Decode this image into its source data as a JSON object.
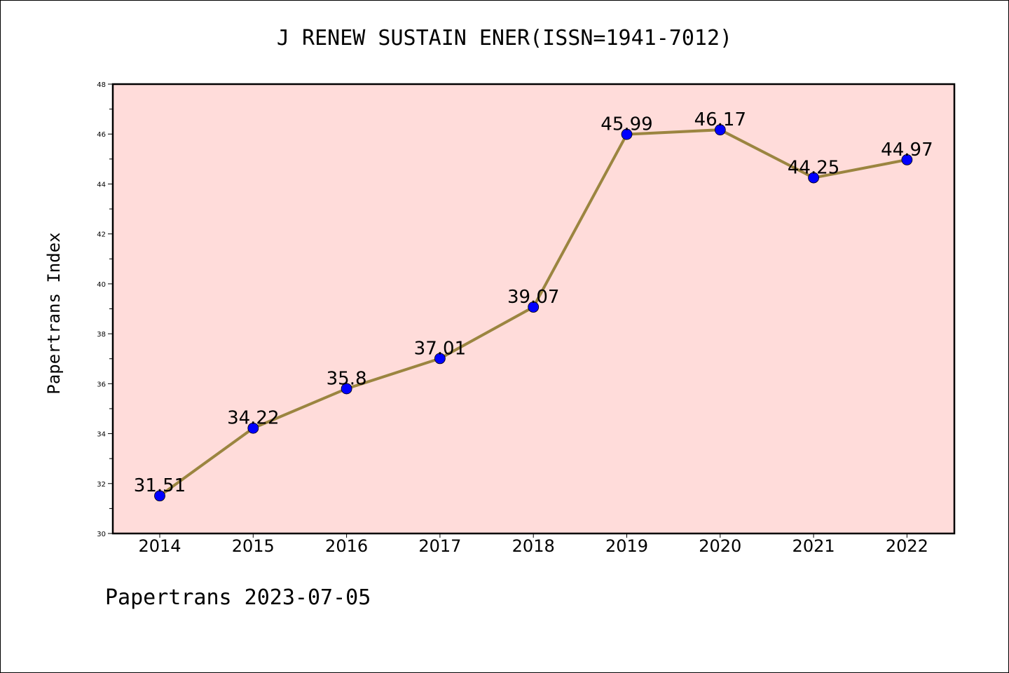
{
  "chart_data": {
    "type": "line",
    "title": "J RENEW SUSTAIN ENER(ISSN=1941-7012)",
    "xlabel": "",
    "ylabel": "Papertrans Index",
    "categories": [
      "2014",
      "2015",
      "2016",
      "2017",
      "2018",
      "2019",
      "2020",
      "2021",
      "2022"
    ],
    "values": [
      31.51,
      34.22,
      35.8,
      37.01,
      39.07,
      45.99,
      46.17,
      44.25,
      44.97
    ],
    "data_labels": [
      "31.51",
      "34.22",
      "35.8",
      "37.01",
      "39.07",
      "45.99",
      "46.17",
      "44.25",
      "44.97"
    ],
    "ylim": [
      30,
      48
    ],
    "y_ticks": [
      30,
      32,
      34,
      36,
      38,
      40,
      42,
      44,
      46,
      48
    ],
    "grid": false,
    "legend": "none",
    "colors": {
      "plot_background": "#FFDCDA",
      "line": "#9B8540",
      "marker": "#0000FF",
      "axes": "#000000"
    }
  },
  "footer": {
    "note": "Papertrans 2023-07-05"
  }
}
